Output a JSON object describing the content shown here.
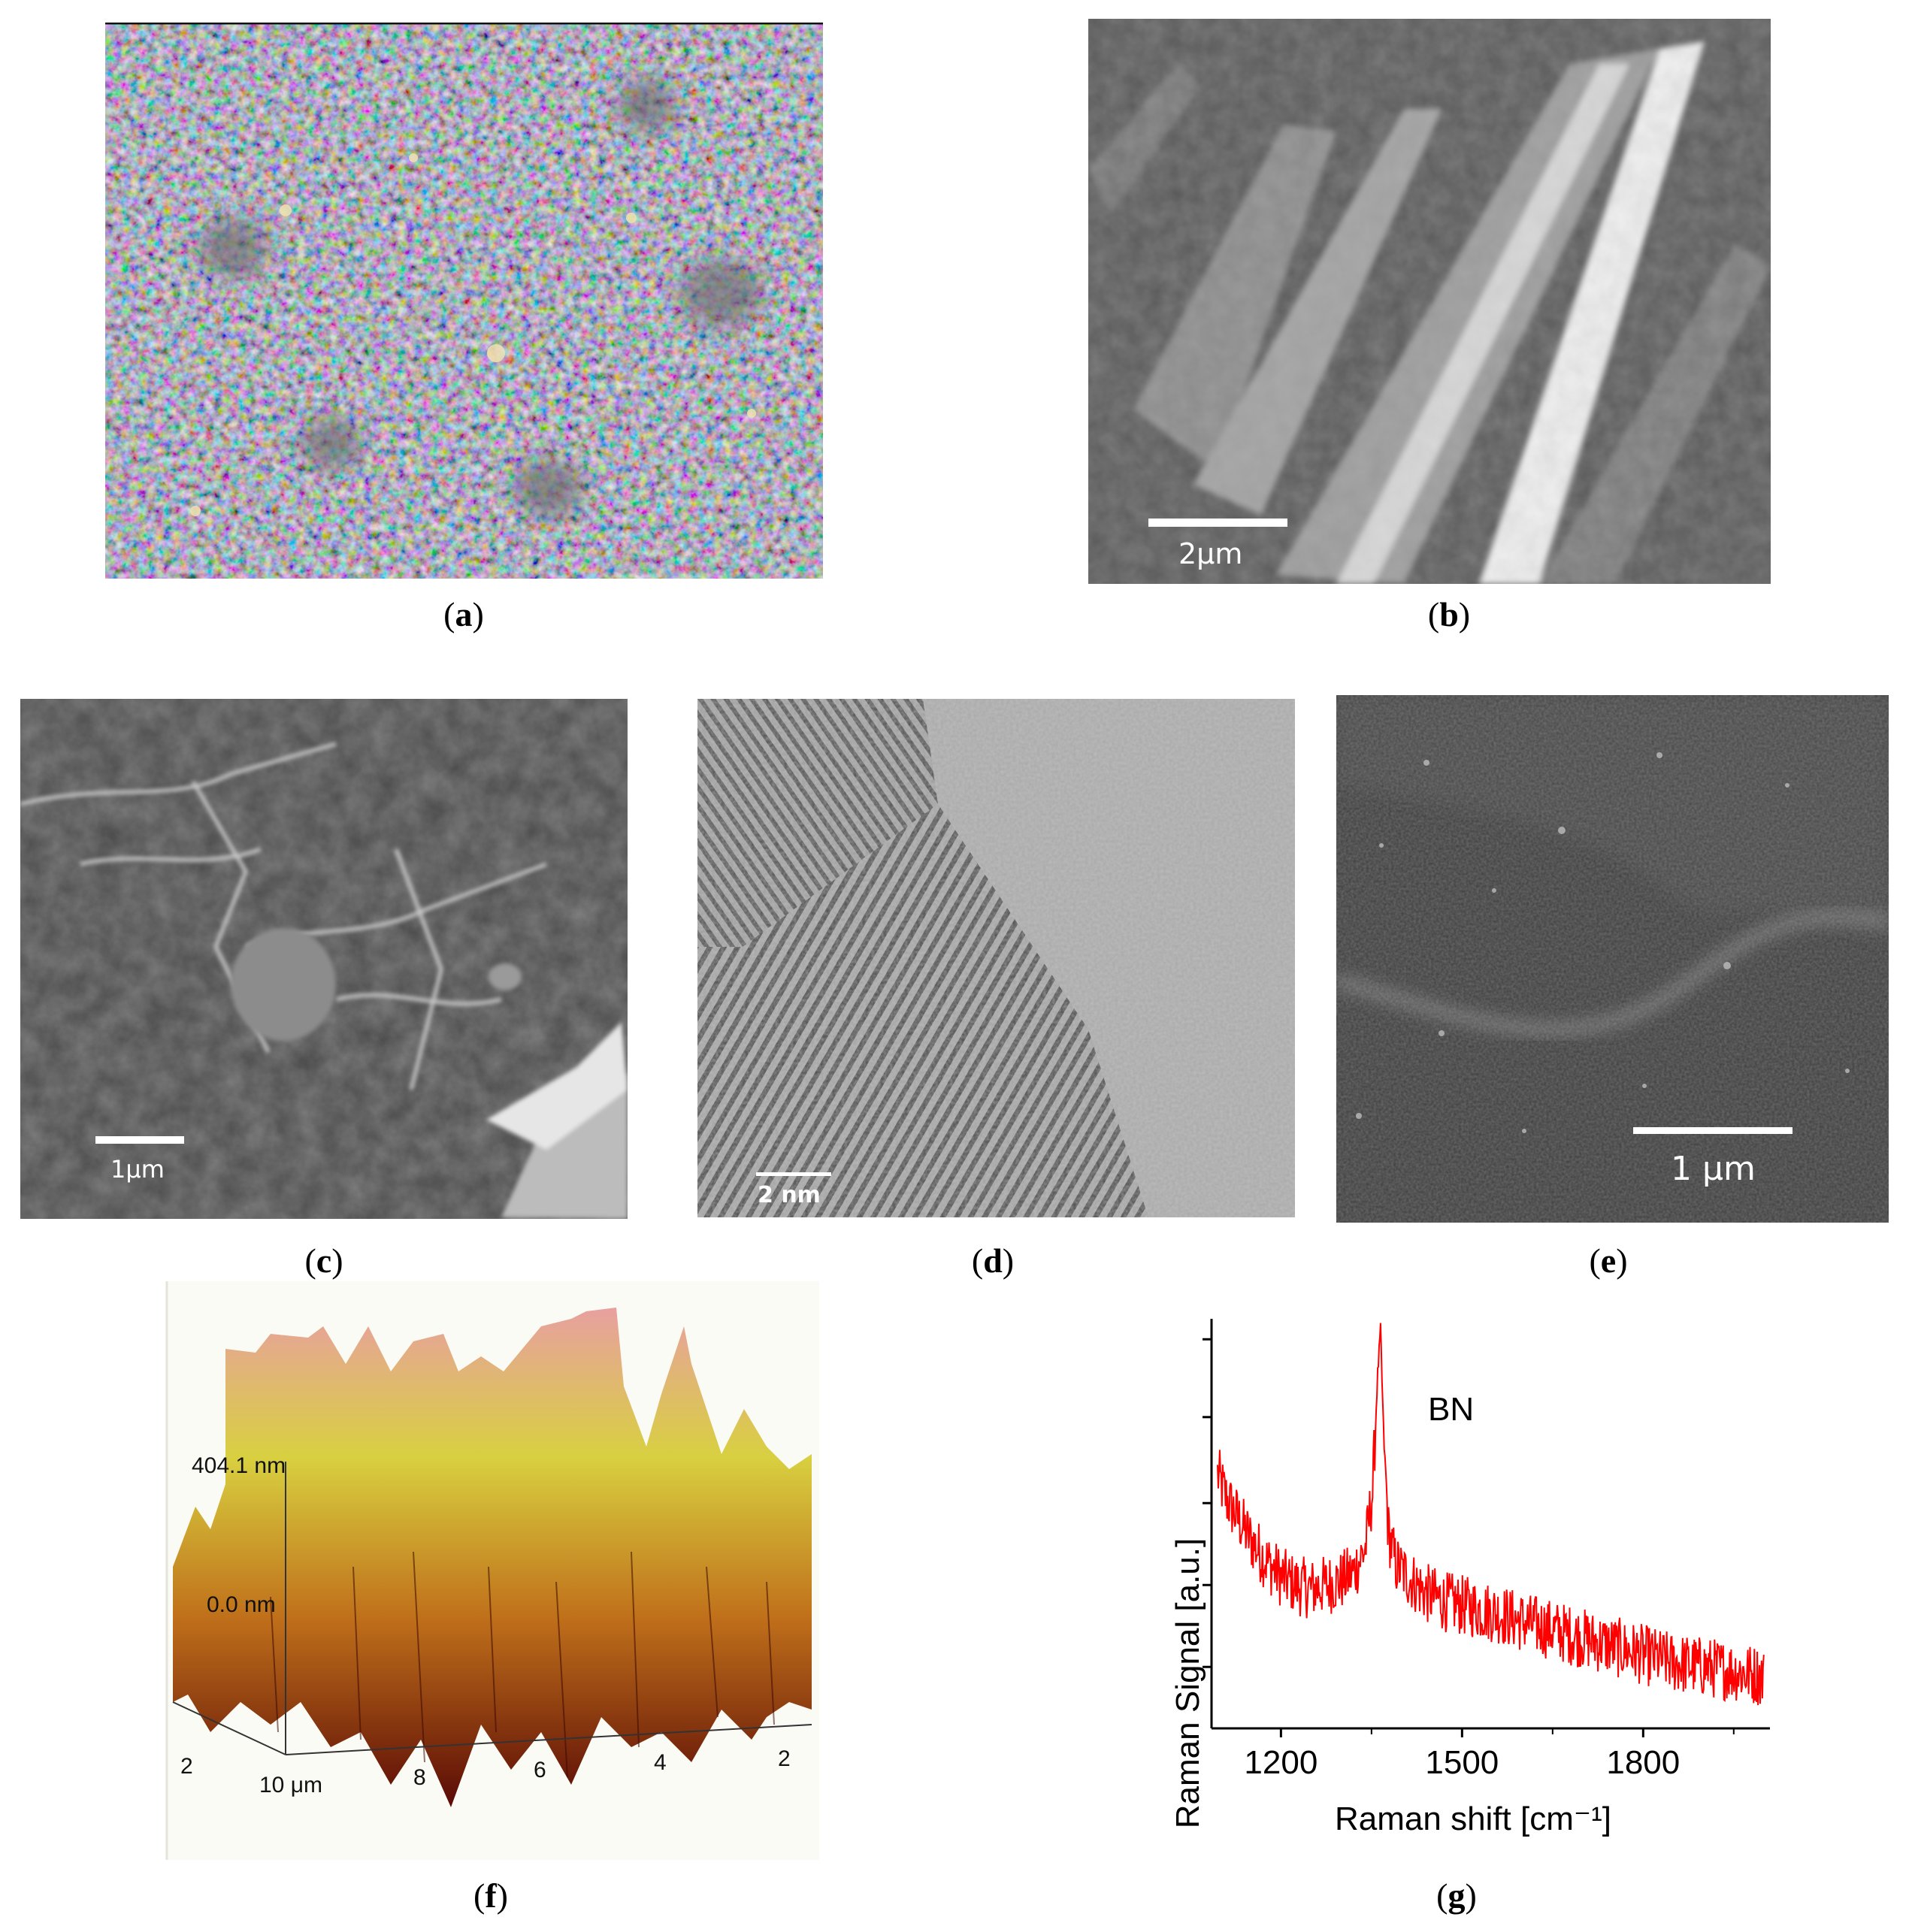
{
  "captions": {
    "a": "a",
    "b": "b",
    "c": "c",
    "d": "d",
    "e": "e",
    "f": "f",
    "g": "g"
  },
  "scale_bars": {
    "b": "2μm",
    "c": "1μm",
    "d": "2 nm",
    "e": "1 μm"
  },
  "afm": {
    "z_top_label": "404.1 nm",
    "z_bottom_label": "0.0 nm",
    "x_ticks": [
      "10 μm",
      "8",
      "6",
      "4",
      "2"
    ],
    "y_ticks": [
      "2"
    ],
    "colors": {
      "low": "#5a0a05",
      "mid": "#c0701a",
      "high_mid": "#d8d040",
      "top": "#e8a0a0"
    }
  },
  "chart_data": {
    "type": "line",
    "title": "",
    "annotation": "BN",
    "xlabel": "Raman shift [cm⁻¹]",
    "ylabel": "Raman Signal [a.u.]",
    "xlim": [
      1085,
      2010
    ],
    "ylim": [
      0,
      1
    ],
    "x_ticks": [
      1200,
      1500,
      1800
    ],
    "x_tick_labels": [
      "1200",
      "1500",
      "1800"
    ],
    "grid": false,
    "series": [
      {
        "color": "#ff0000",
        "x": [
          1095,
          1110,
          1130,
          1150,
          1175,
          1200,
          1225,
          1250,
          1275,
          1300,
          1320,
          1340,
          1352,
          1360,
          1365,
          1370,
          1378,
          1390,
          1410,
          1440,
          1470,
          1500,
          1530,
          1560,
          1600,
          1650,
          1700,
          1750,
          1800,
          1850,
          1900,
          1950,
          1990,
          2000
        ],
        "y": [
          0.62,
          0.56,
          0.51,
          0.46,
          0.41,
          0.37,
          0.35,
          0.34,
          0.35,
          0.36,
          0.38,
          0.44,
          0.58,
          0.86,
          0.97,
          0.72,
          0.48,
          0.4,
          0.37,
          0.33,
          0.31,
          0.3,
          0.29,
          0.28,
          0.26,
          0.24,
          0.22,
          0.2,
          0.18,
          0.16,
          0.15,
          0.14,
          0.13,
          0.12
        ]
      }
    ]
  }
}
